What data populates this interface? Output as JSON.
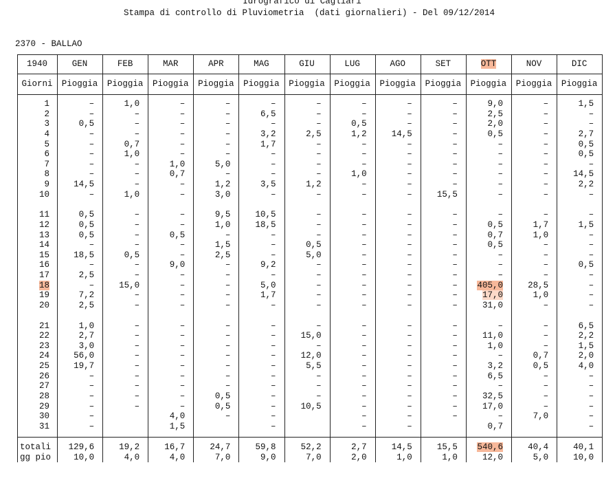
{
  "header": {
    "title": "Idrografico di Cagliari",
    "subtitle": "Stampa di controllo di Pluviometria  (dati giornalieri) - Del 09/12/2014",
    "station": "2370 - BALLAO"
  },
  "table": {
    "year": "1940",
    "months": [
      "GEN",
      "FEB",
      "MAR",
      "APR",
      "MAG",
      "GIU",
      "LUG",
      "AGO",
      "SET",
      "OTT",
      "NOV",
      "DIC"
    ],
    "day_label": "Giorni",
    "column_label": "Pioggia",
    "rows": [
      {
        "day": "1",
        "values": [
          "–",
          "1,0",
          "–",
          "–",
          "–",
          "–",
          "–",
          "–",
          "–",
          "9,0",
          "–",
          "1,5"
        ]
      },
      {
        "day": "2",
        "values": [
          "–",
          "–",
          "–",
          "–",
          "6,5",
          "–",
          "–",
          "–",
          "–",
          "2,5",
          "–",
          "–"
        ]
      },
      {
        "day": "3",
        "values": [
          "0,5",
          "–",
          "–",
          "–",
          "–",
          "–",
          "0,5",
          "–",
          "–",
          "2,0",
          "–",
          "–"
        ]
      },
      {
        "day": "4",
        "values": [
          "–",
          "–",
          "–",
          "–",
          "3,2",
          "2,5",
          "1,2",
          "14,5",
          "–",
          "0,5",
          "–",
          "2,7"
        ]
      },
      {
        "day": "5",
        "values": [
          "–",
          "0,7",
          "–",
          "–",
          "1,7",
          "–",
          "–",
          "–",
          "–",
          "–",
          "–",
          "0,5"
        ]
      },
      {
        "day": "6",
        "values": [
          "–",
          "1,0",
          "–",
          "–",
          "–",
          "–",
          "–",
          "–",
          "–",
          "–",
          "–",
          "0,5"
        ]
      },
      {
        "day": "7",
        "values": [
          "–",
          "–",
          "1,0",
          "5,0",
          "–",
          "–",
          "–",
          "–",
          "–",
          "–",
          "–",
          "–"
        ]
      },
      {
        "day": "8",
        "values": [
          "–",
          "–",
          "0,7",
          "–",
          "–",
          "–",
          "1,0",
          "–",
          "–",
          "–",
          "–",
          "14,5"
        ]
      },
      {
        "day": "9",
        "values": [
          "14,5",
          "–",
          "–",
          "1,2",
          "3,5",
          "1,2",
          "–",
          "–",
          "–",
          "–",
          "–",
          "2,2"
        ]
      },
      {
        "day": "10",
        "values": [
          "–",
          "1,0",
          "–",
          "3,0",
          "–",
          "–",
          "–",
          "–",
          "15,5",
          "–",
          "–",
          "–"
        ]
      },
      {
        "day": "11",
        "values": [
          "0,5",
          "–",
          "–",
          "9,5",
          "10,5",
          "–",
          "–",
          "–",
          "–",
          "–",
          "–",
          "–"
        ]
      },
      {
        "day": "12",
        "values": [
          "0,5",
          "–",
          "–",
          "1,0",
          "18,5",
          "–",
          "–",
          "–",
          "–",
          "0,5",
          "1,7",
          "1,5"
        ]
      },
      {
        "day": "13",
        "values": [
          "0,5",
          "–",
          "0,5",
          "–",
          "–",
          "–",
          "–",
          "–",
          "–",
          "0,7",
          "1,0",
          "–"
        ]
      },
      {
        "day": "14",
        "values": [
          "–",
          "–",
          "–",
          "1,5",
          "–",
          "0,5",
          "–",
          "–",
          "–",
          "0,5",
          "–",
          "–"
        ]
      },
      {
        "day": "15",
        "values": [
          "18,5",
          "0,5",
          "–",
          "2,5",
          "–",
          "5,0",
          "–",
          "–",
          "–",
          "–",
          "–",
          "–"
        ]
      },
      {
        "day": "16",
        "values": [
          "–",
          "–",
          "9,0",
          "–",
          "9,2",
          "–",
          "–",
          "–",
          "–",
          "–",
          "–",
          "0,5"
        ]
      },
      {
        "day": "17",
        "values": [
          "2,5",
          "–",
          "–",
          "–",
          "–",
          "–",
          "–",
          "–",
          "–",
          "–",
          "–",
          "–"
        ]
      },
      {
        "day": "18",
        "values": [
          "–",
          "15,0",
          "–",
          "–",
          "5,0",
          "–",
          "–",
          "–",
          "–",
          "405,0",
          "28,5",
          "–"
        ]
      },
      {
        "day": "19",
        "values": [
          "7,2",
          "–",
          "–",
          "–",
          "1,7",
          "–",
          "–",
          "–",
          "–",
          "17,0",
          "1,0",
          "–"
        ]
      },
      {
        "day": "20",
        "values": [
          "2,5",
          "–",
          "–",
          "–",
          "–",
          "–",
          "–",
          "–",
          "–",
          "31,0",
          "–",
          "–"
        ]
      },
      {
        "day": "21",
        "values": [
          "1,0",
          "–",
          "–",
          "–",
          "–",
          "–",
          "–",
          "–",
          "–",
          "–",
          "–",
          "6,5"
        ]
      },
      {
        "day": "22",
        "values": [
          "2,7",
          "–",
          "–",
          "–",
          "–",
          "15,0",
          "–",
          "–",
          "–",
          "11,0",
          "–",
          "2,2"
        ]
      },
      {
        "day": "23",
        "values": [
          "3,0",
          "–",
          "–",
          "–",
          "–",
          "–",
          "–",
          "–",
          "–",
          "1,0",
          "–",
          "1,5"
        ]
      },
      {
        "day": "24",
        "values": [
          "56,0",
          "–",
          "–",
          "–",
          "–",
          "12,0",
          "–",
          "–",
          "–",
          "–",
          "0,7",
          "2,0"
        ]
      },
      {
        "day": "25",
        "values": [
          "19,7",
          "–",
          "–",
          "–",
          "–",
          "5,5",
          "–",
          "–",
          "–",
          "3,2",
          "0,5",
          "4,0"
        ]
      },
      {
        "day": "26",
        "values": [
          "–",
          "–",
          "–",
          "–",
          "–",
          "–",
          "–",
          "–",
          "–",
          "6,5",
          "–",
          "–"
        ]
      },
      {
        "day": "27",
        "values": [
          "–",
          "–",
          "–",
          "–",
          "–",
          "–",
          "–",
          "–",
          "–",
          "–",
          "–",
          "–"
        ]
      },
      {
        "day": "28",
        "values": [
          "–",
          "–",
          "–",
          "0,5",
          "–",
          "–",
          "–",
          "–",
          "–",
          "32,5",
          "–",
          "–"
        ]
      },
      {
        "day": "29",
        "values": [
          "–",
          "–",
          "–",
          "0,5",
          "–",
          "10,5",
          "–",
          "–",
          "–",
          "17,0",
          "–",
          "–"
        ]
      },
      {
        "day": "30",
        "values": [
          "–",
          null,
          "4,0",
          "–",
          "–",
          null,
          "–",
          "–",
          "–",
          "–",
          "7,0",
          "–"
        ]
      },
      {
        "day": "31",
        "values": [
          "–",
          null,
          "1,5",
          null,
          "–",
          null,
          "–",
          "–",
          null,
          "0,7",
          null,
          "–"
        ]
      }
    ],
    "totals": {
      "label": "totali",
      "values": [
        "129,6",
        "19,2",
        "16,7",
        "24,7",
        "59,8",
        "52,2",
        "2,7",
        "14,5",
        "15,5",
        "540,6",
        "40,4",
        "40,1"
      ]
    },
    "rain_days": {
      "label": "gg pio",
      "values": [
        "10,0",
        "4,0",
        "4,0",
        "7,0",
        "9,0",
        "7,0",
        "2,0",
        "1,0",
        "1,0",
        "12,0",
        "5,0",
        "10,0"
      ]
    }
  }
}
